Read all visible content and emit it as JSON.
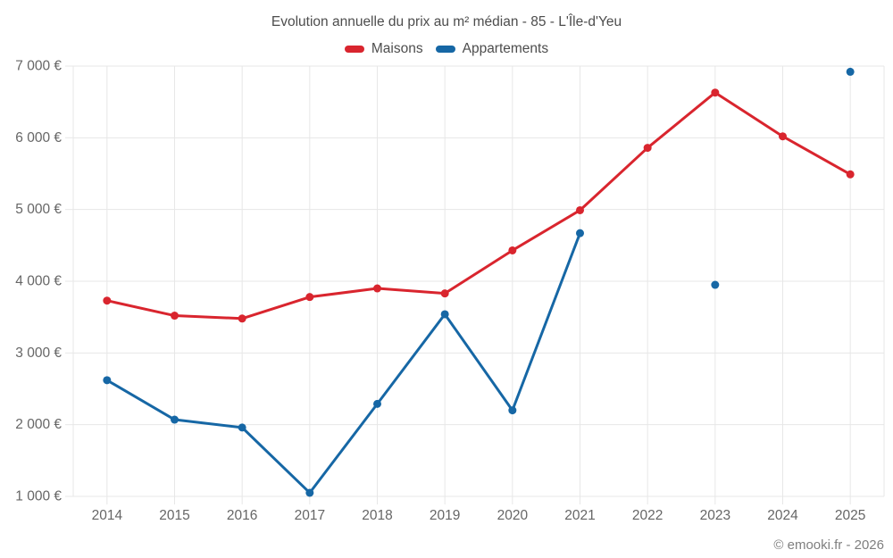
{
  "page": {
    "footer": "© emooki.fr - 2026"
  },
  "legend": {
    "items": [
      {
        "label": "Maisons",
        "color": "#d9252e"
      },
      {
        "label": "Appartements",
        "color": "#1667a5"
      }
    ]
  },
  "chart_data": {
    "type": "line",
    "title": "Evolution annuelle du prix au m² médian - 85 - L'Île-d'Yeu",
    "categories": [
      "2014",
      "2015",
      "2016",
      "2017",
      "2018",
      "2019",
      "2020",
      "2021",
      "2022",
      "2023",
      "2024",
      "2025"
    ],
    "series": [
      {
        "name": "Maisons",
        "color": "#d9252e",
        "values": [
          3730,
          3520,
          3480,
          3780,
          3900,
          3830,
          4430,
          4990,
          5860,
          6630,
          6020,
          5490
        ]
      },
      {
        "name": "Appartements",
        "color": "#1667a5",
        "values": [
          2620,
          2070,
          1960,
          1050,
          2290,
          3540,
          2200,
          4670,
          null,
          3950,
          null,
          6920
        ]
      }
    ],
    "xlabel": "",
    "ylabel": "",
    "ylim": [
      1000,
      7000
    ],
    "y_tick_step": 1000,
    "y_tick_labels": [
      "1 000 €",
      "2 000 €",
      "3 000 €",
      "4 000 €",
      "5 000 €",
      "6 000 €",
      "7 000 €"
    ],
    "grid": true,
    "grid_color": "#e7e7e7",
    "axis_text_color": "#666666",
    "legend_position": "top"
  }
}
